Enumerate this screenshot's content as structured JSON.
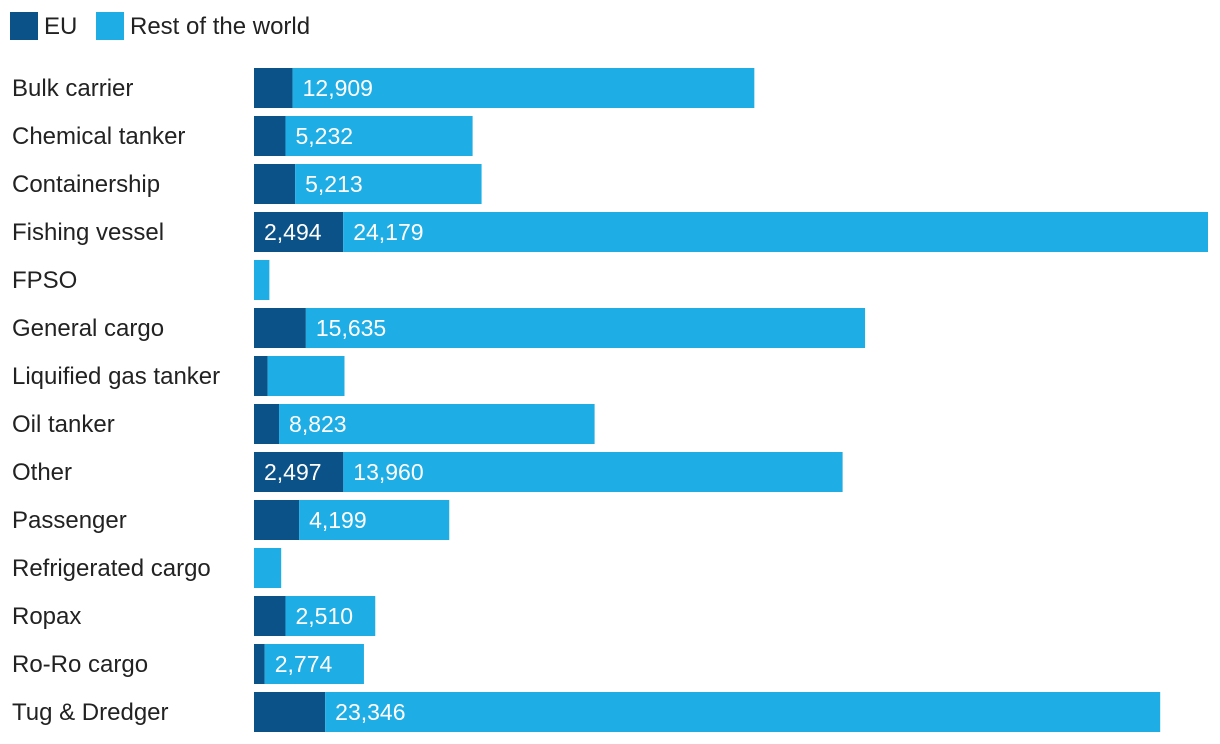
{
  "chart_data": {
    "type": "bar",
    "orientation": "horizontal",
    "stacked": true,
    "legend_position": "top-left",
    "grid": false,
    "categories": [
      "Bulk carrier",
      "Chemical tanker",
      "Containership",
      "Fishing vessel",
      "FPSO",
      "General cargo",
      "Liquified gas tanker",
      "Oil tanker",
      "Other",
      "Passenger",
      "Refrigerated cargo",
      "Ropax",
      "Ro-Ro cargo",
      "Tug & Dredger"
    ],
    "series": [
      {
        "name": "EU",
        "color": "#0a5287",
        "values": [
          1080,
          880,
          1150,
          2494,
          0,
          1450,
          380,
          700,
          2497,
          1260,
          0,
          880,
          300,
          1990
        ],
        "labels": [
          "",
          "",
          "",
          "2,494",
          "",
          "",
          "",
          "",
          "2,497",
          "",
          "",
          "",
          "",
          ""
        ]
      },
      {
        "name": "Rest of the world",
        "color": "#1fade6",
        "values": [
          12909,
          5232,
          5213,
          24179,
          430,
          15635,
          2150,
          8823,
          13960,
          4199,
          760,
          2510,
          2774,
          23346
        ],
        "labels": [
          "12,909",
          "5,232",
          "5,213",
          "24,179",
          "",
          "15,635",
          "",
          "8,823",
          "13,960",
          "4,199",
          "",
          "2,510",
          "2,774",
          "23,346"
        ]
      }
    ],
    "xlim": [
      0,
      26673
    ]
  }
}
